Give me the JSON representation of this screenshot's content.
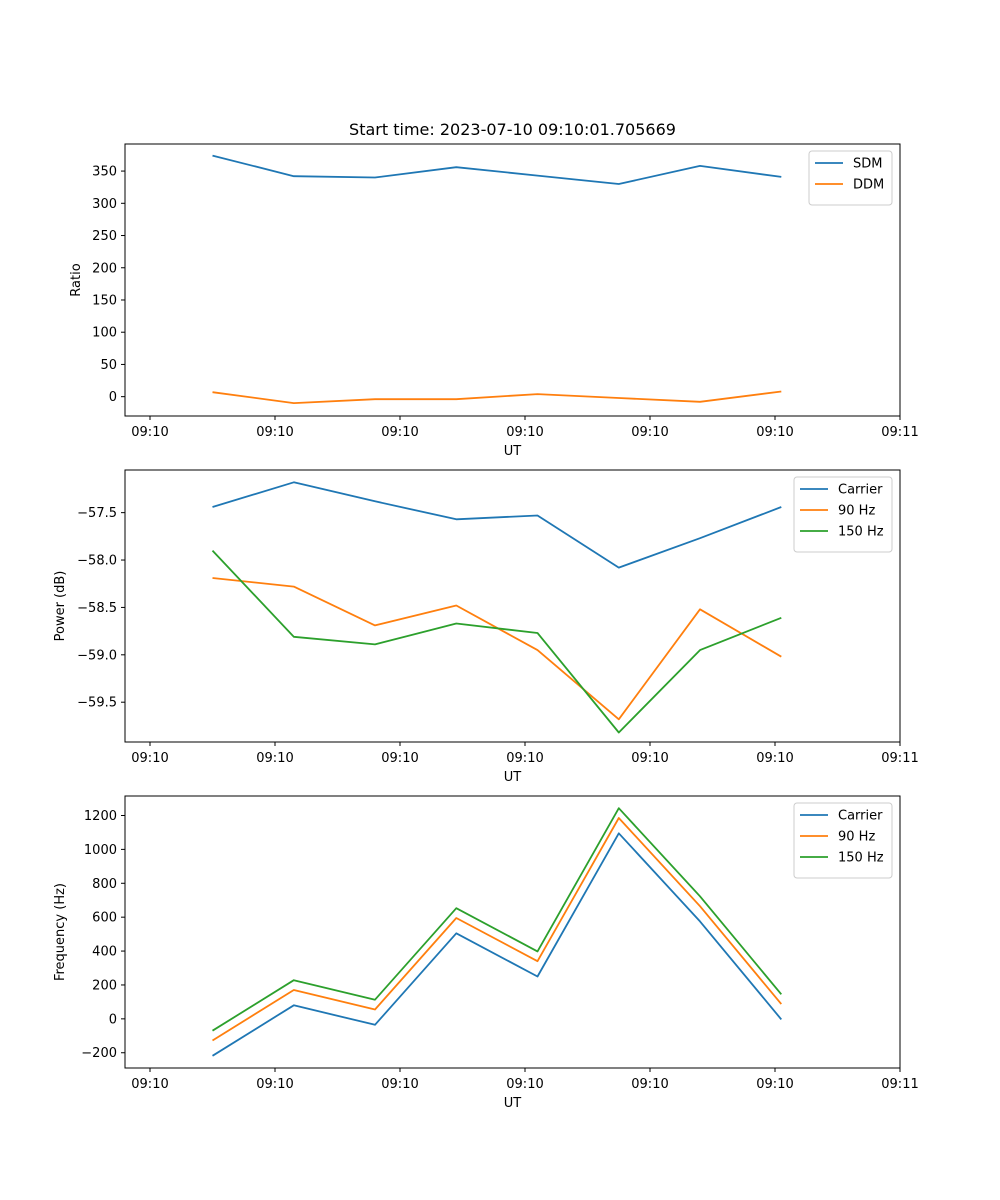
{
  "chart_data": [
    {
      "type": "line",
      "title": "Start time: 2023-07-10 09:10:01.705669",
      "xlabel": "UT",
      "ylabel": "Ratio",
      "x_ticks": [
        "09:10",
        "09:10",
        "09:10",
        "09:10",
        "09:10",
        "09:10",
        "09:11"
      ],
      "y_ticks": [
        0,
        50,
        100,
        150,
        200,
        250,
        300,
        350
      ],
      "ylim": [
        -30,
        392
      ],
      "x": [
        0.5,
        1.15,
        1.8,
        2.45,
        3.1,
        3.75,
        4.4,
        5.05
      ],
      "legend": "top-right",
      "series": [
        {
          "name": "SDM",
          "color": "#1f77b4",
          "values": [
            374,
            342,
            340,
            356,
            343,
            330,
            358,
            341
          ]
        },
        {
          "name": "DDM",
          "color": "#ff7f0e",
          "values": [
            7,
            -10,
            -4,
            -4,
            4,
            -2,
            -8,
            8
          ]
        }
      ]
    },
    {
      "type": "line",
      "title": "",
      "xlabel": "UT",
      "ylabel": "Power (dB)",
      "x_ticks": [
        "09:10",
        "09:10",
        "09:10",
        "09:10",
        "09:10",
        "09:10",
        "09:11"
      ],
      "y_ticks": [
        -57.5,
        -58.0,
        -58.5,
        -59.0,
        -59.5
      ],
      "ylim": [
        -59.92,
        -57.05
      ],
      "x": [
        0.5,
        1.15,
        1.8,
        2.45,
        3.1,
        3.75,
        4.4,
        5.05
      ],
      "legend": "top-right",
      "series": [
        {
          "name": "Carrier",
          "color": "#1f77b4",
          "values": [
            -57.44,
            -57.18,
            -57.38,
            -57.57,
            -57.53,
            -58.08,
            -57.77,
            -57.44
          ]
        },
        {
          "name": "90 Hz",
          "color": "#ff7f0e",
          "values": [
            -58.19,
            -58.28,
            -58.69,
            -58.48,
            -58.95,
            -59.68,
            -58.52,
            -59.02
          ]
        },
        {
          "name": "150 Hz",
          "color": "#2ca02c",
          "values": [
            -57.9,
            -58.81,
            -58.89,
            -58.67,
            -58.77,
            -59.82,
            -58.95,
            -58.61
          ]
        }
      ]
    },
    {
      "type": "line",
      "title": "",
      "xlabel": "UT",
      "ylabel": "Frequency (Hz)",
      "x_ticks": [
        "09:10",
        "09:10",
        "09:10",
        "09:10",
        "09:10",
        "09:10",
        "09:11"
      ],
      "y_ticks": [
        -200,
        0,
        200,
        400,
        600,
        800,
        1000,
        1200
      ],
      "ylim": [
        -290,
        1315
      ],
      "x": [
        0.5,
        1.15,
        1.8,
        2.45,
        3.1,
        3.75,
        4.4,
        5.05
      ],
      "legend": "top-right",
      "series": [
        {
          "name": "Carrier",
          "color": "#1f77b4",
          "values": [
            -218,
            80,
            -35,
            505,
            250,
            1095,
            575,
            -3
          ]
        },
        {
          "name": "90 Hz",
          "color": "#ff7f0e",
          "values": [
            -128,
            170,
            55,
            595,
            340,
            1185,
            665,
            87
          ]
        },
        {
          "name": "150 Hz",
          "color": "#2ca02c",
          "values": [
            -70,
            228,
            113,
            653,
            398,
            1243,
            723,
            145
          ]
        }
      ]
    }
  ]
}
